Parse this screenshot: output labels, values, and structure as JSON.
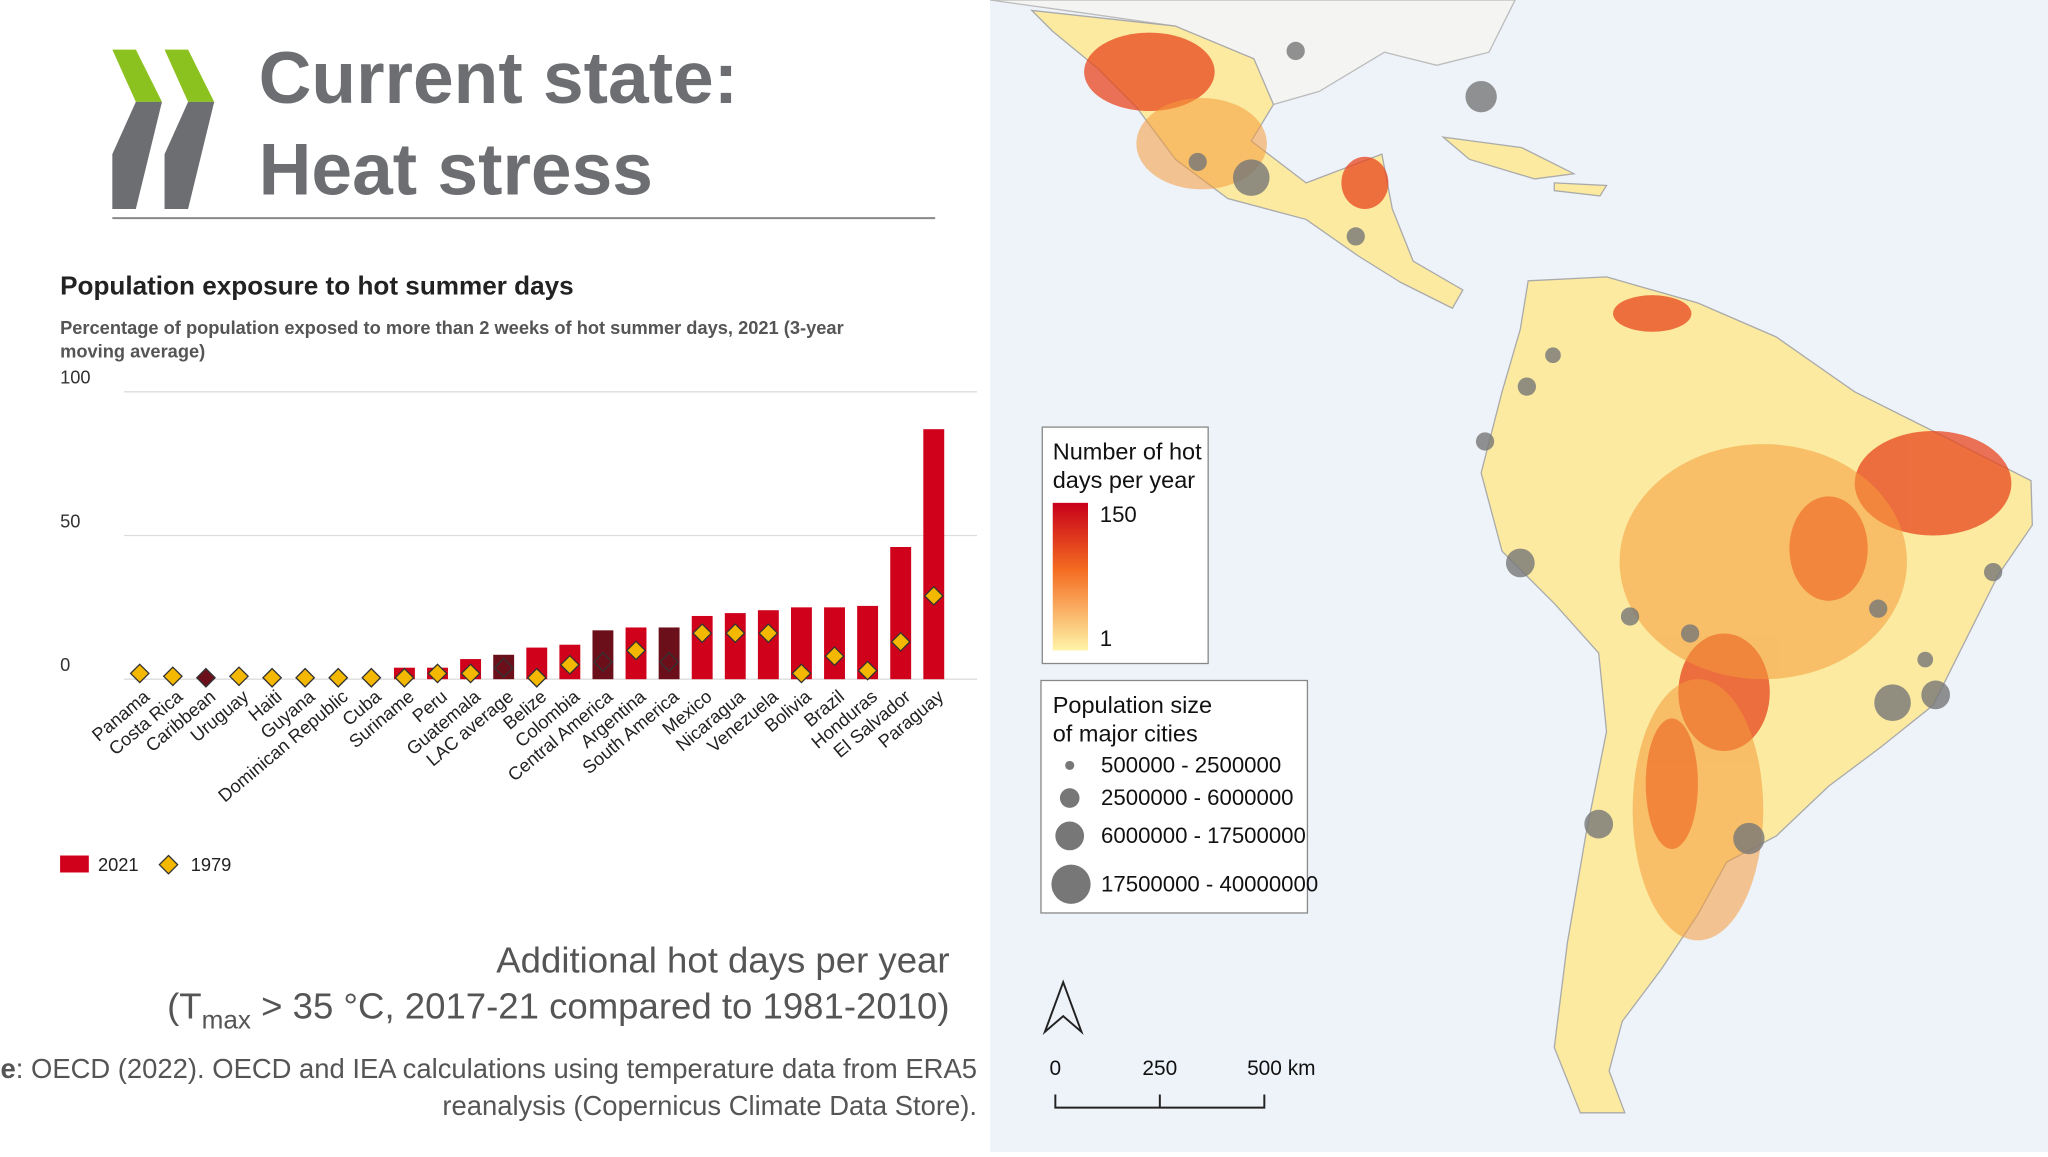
{
  "slide": {
    "title_lines": [
      "Current state:",
      "Heat stress"
    ],
    "caption": [
      "Additional hot days per year",
      "(T",
      "max",
      " > 35 °C, 2017-21 compared to 1981-2010)"
    ],
    "source": {
      "label": "Source",
      "lines": [
        ": OECD (2022). OECD and IEA calculations using temperature data from ERA5",
        "reanalysis (Copernicus Climate Data Store)."
      ]
    }
  },
  "chart_data": {
    "type": "bar",
    "title": "Population exposure to hot summer days",
    "subtitle": [
      "Percentage of population exposed to more than 2 weeks of hot summer days, 2021 (3-year",
      "moving average)"
    ],
    "categories": [
      "Panama",
      "Costa Rica",
      "Caribbean",
      "Uruguay",
      "Haiti",
      "Guyana",
      "Dominican Republic",
      "Cuba",
      "Suriname",
      "Peru",
      "Guatemala",
      "LAC average",
      "Belize",
      "Colombia",
      "Central America",
      "Argentina",
      "South America",
      "Mexico",
      "Nicaragua",
      "Venezuela",
      "Bolivia",
      "Brazil",
      "Honduras",
      "El Salvador",
      "Paraguay"
    ],
    "series": [
      {
        "name": "2021",
        "color": "#d0021b",
        "values": [
          0,
          0,
          0,
          0,
          0,
          0,
          0,
          0,
          4,
          4,
          7,
          8.5,
          11,
          12,
          17,
          18,
          18,
          22,
          23,
          24,
          25,
          25,
          25.5,
          46,
          87
        ],
        "colors": [
          "#d0021b",
          "#d0021b",
          "#6b0f1a",
          "#d0021b",
          "#d0021b",
          "#d0021b",
          "#d0021b",
          "#d0021b",
          "#d0021b",
          "#d0021b",
          "#d0021b",
          "#6b0f1a",
          "#d0021b",
          "#d0021b",
          "#6b0f1a",
          "#d0021b",
          "#6b0f1a",
          "#d0021b",
          "#d0021b",
          "#d0021b",
          "#d0021b",
          "#d0021b",
          "#d0021b",
          "#d0021b",
          "#d0021b"
        ]
      },
      {
        "name": "1979",
        "color": "#f5b800",
        "values": [
          2,
          1,
          0.5,
          1,
          0.5,
          0.5,
          0.5,
          0.5,
          0.5,
          2,
          2,
          4,
          0.5,
          5,
          6,
          10,
          6,
          16,
          16,
          16,
          2,
          8,
          3,
          13,
          29
        ],
        "colors": [
          "#f5b800",
          "#f5b800",
          "#6b0f1a",
          "#f5b800",
          "#f5b800",
          "#f5b800",
          "#f5b800",
          "#f5b800",
          "#f5b800",
          "#f5b800",
          "#f5b800",
          "#6b0f1a",
          "#f5b800",
          "#f5b800",
          "#6b0f1a",
          "#f5b800",
          "#6b0f1a",
          "#f5b800",
          "#f5b800",
          "#f5b800",
          "#f5b800",
          "#f5b800",
          "#f5b800",
          "#f5b800",
          "#f5b800"
        ]
      }
    ],
    "ylim": [
      0,
      100
    ],
    "yticks": [
      0,
      50,
      100
    ],
    "grid": true
  },
  "map": {
    "hot_days_legend": {
      "title": [
        "Number of hot",
        "days per year"
      ],
      "max": "150",
      "min": "1"
    },
    "population_legend": {
      "title": [
        "Population size",
        "of major cities"
      ],
      "items": [
        "500000 - 2500000",
        "2500000 - 6000000",
        "6000000 - 17500000",
        "17500000 - 40000000"
      ]
    },
    "scale": [
      "0",
      "250",
      "500 km"
    ]
  }
}
